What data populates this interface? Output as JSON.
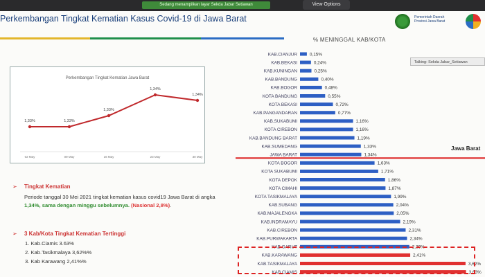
{
  "zoom": {
    "banner_text": "Sedang menampilkan layar Sekda Jabar Setiawan",
    "view_options_label": "View Options",
    "tooltip_text": "Talking: Sekda Jabar_Setiawan"
  },
  "slide": {
    "title": "Perkembangan Tingkat Kematian Kasus Covid-19 di Jawa Barat",
    "logo_text_line1": "Pemerintah Daerah",
    "logo_text_line2": "Provinsi Jawa Barat",
    "rule_colors": [
      "#e3b62b",
      "#1f8f4a",
      "#2b6cc4"
    ]
  },
  "line_chart": {
    "title": "Perkembangan Tingkat Kematian Jawa Barat",
    "categories": [
      "02 May",
      "09 May",
      "16 May",
      "23 May",
      "30 May"
    ],
    "value_labels": [
      "1,33%",
      "1,33%",
      "1,33%",
      "1,34%",
      "1,34%"
    ],
    "color": "#c0292c"
  },
  "text": {
    "section1_heading": "Tingkat Kematian",
    "para_1": "Periode tanggal 30 Mei 2021 tingkat kematian kasus covid19 Jawa Barat di angka ",
    "para_value": "1,34%",
    "para_2": ", sama dengan minggu sebelumnya.",
    "para_national": "(Nasional 2,8%)",
    "para_end": ".",
    "section2_heading": "3 Kab/Kota Tingkat Kematian Tertinggi",
    "top3": [
      "1.   Kab.Ciamis 3.63%",
      "2.   Kab.Tasikmalaya 3,62%%",
      "3.   Kab Karawang 2,41%%"
    ]
  },
  "chart_data": {
    "type": "bar",
    "orientation": "horizontal",
    "title": "% MENINGGAL KAB/KOTA",
    "reference_label": "Jawa Barat",
    "categories": [
      "KAB.CIANJUR",
      "KAB.BEKASI",
      "KAB.KUNINGAN",
      "KAB.BANDUNG",
      "KAB.BOGOR",
      "KOTA BANDUNG",
      "KOTA BEKASI",
      "KAB.PANGANDARAN",
      "KAB.SUKABUMI",
      "KOTA CIREBON",
      "KAB.BANDUNG BARAT",
      "KAB.SUMEDANG",
      "JAWA BARAT",
      "KOTA BOGOR",
      "KOTA SUKABUMI",
      "KOTA DEPOK",
      "KOTA CIMAHI",
      "KOTA TASIKMALAYA",
      "KAB.SUBANG",
      "KAB.MAJALENGKA",
      "KAB.INDRAMAYU",
      "KAB.CIREBON",
      "KAB.PURWAKARTA",
      "KAB.GARUT",
      "KAB.KARAWANG",
      "KAB.TASIKMALAYA",
      "KAB.CIAMIS"
    ],
    "values": [
      0.15,
      0.24,
      0.25,
      0.4,
      0.48,
      0.55,
      0.72,
      0.77,
      1.16,
      1.16,
      1.19,
      1.33,
      1.34,
      1.63,
      1.71,
      1.86,
      1.87,
      1.99,
      2.04,
      2.05,
      2.19,
      2.31,
      2.34,
      2.39,
      2.41,
      3.62,
      3.63
    ],
    "value_labels": [
      "0,15%",
      "0,24%",
      "0,25%",
      "0,40%",
      "0,48%",
      "0,55%",
      "0,72%",
      "0,77%",
      "1,16%",
      "1,16%",
      "1,19%",
      "1,33%",
      "1,34%",
      "1,63%",
      "1,71%",
      "1,86%",
      "1,87%",
      "1,99%",
      "2,04%",
      "2,05%",
      "2,19%",
      "2,31%",
      "2,34%",
      "2,39%",
      "2,41%",
      "3,62%",
      "3,63%"
    ],
    "bar_color": "#2d5fc4",
    "highlight_color": "#e03030"
  }
}
